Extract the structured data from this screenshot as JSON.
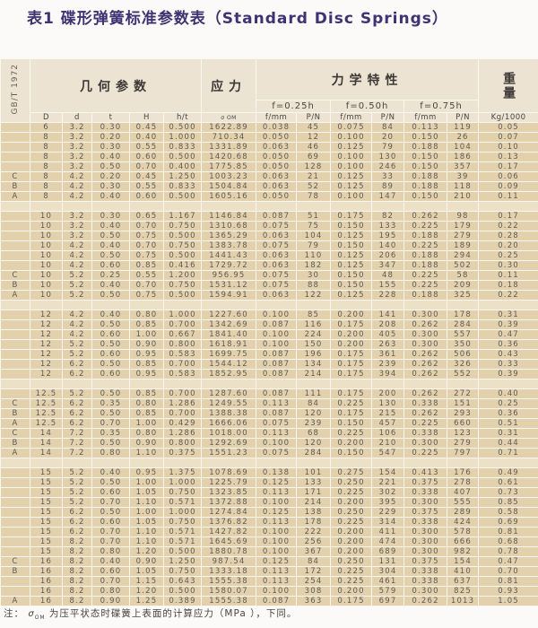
{
  "title": "表1  碟形弹簧标准参数表（Standard Disc Springs）",
  "header": {
    "standard": "GB/T 1972",
    "geometry": "几何参数",
    "stress": "应力",
    "mechanics": "力学特性",
    "weight": "重量",
    "deflections": [
      "f=0.25h",
      "f=0.50h",
      "f=0.75h"
    ],
    "columns": [
      "D",
      "d",
      "t",
      "H",
      "h/t",
      "σ OM",
      "f/mm",
      "P/N",
      "f/mm",
      "P/N",
      "f/mm",
      "P/N",
      "Kg/1000"
    ]
  },
  "groups": [
    [
      [
        "",
        "6",
        "3.2",
        "0.30",
        "0.45",
        "0.500",
        "1622.89",
        "0.038",
        "45",
        "0.075",
        "84",
        "0.113",
        "119",
        "0.05"
      ],
      [
        "",
        "8",
        "3.2",
        "0.20",
        "0.40",
        "1.000",
        "710.34",
        "0.050",
        "12",
        "0.100",
        "20",
        "0.150",
        "26",
        "0.07"
      ],
      [
        "",
        "8",
        "3.2",
        "0.30",
        "0.55",
        "0.833",
        "1331.89",
        "0.063",
        "46",
        "0.125",
        "79",
        "0.188",
        "104",
        "0.10"
      ],
      [
        "",
        "8",
        "3.2",
        "0.40",
        "0.60",
        "0.500",
        "1420.68",
        "0.050",
        "69",
        "0.100",
        "130",
        "0.150",
        "186",
        "0.13"
      ],
      [
        "",
        "8",
        "3.2",
        "0.50",
        "0.70",
        "0.400",
        "1775.85",
        "0.050",
        "128",
        "0.100",
        "246",
        "0.150",
        "357",
        "0.17"
      ],
      [
        "C",
        "8",
        "4.2",
        "0.20",
        "0.45",
        "1.250",
        "1003.23",
        "0.063",
        "21",
        "0.125",
        "33",
        "0.188",
        "39",
        "0.06"
      ],
      [
        "B",
        "8",
        "4.2",
        "0.30",
        "0.55",
        "0.833",
        "1504.84",
        "0.063",
        "52",
        "0.125",
        "89",
        "0.188",
        "118",
        "0.09"
      ],
      [
        "A",
        "8",
        "4.2",
        "0.40",
        "0.60",
        "0.500",
        "1605.16",
        "0.050",
        "78",
        "0.100",
        "147",
        "0.150",
        "210",
        "0.11"
      ]
    ],
    [
      [
        "",
        "10",
        "3.2",
        "0.30",
        "0.65",
        "1.167",
        "1146.84",
        "0.087",
        "51",
        "0.175",
        "82",
        "0.262",
        "98",
        "0.17"
      ],
      [
        "",
        "10",
        "3.2",
        "0.40",
        "0.70",
        "0.750",
        "1310.68",
        "0.075",
        "75",
        "0.150",
        "133",
        "0.225",
        "179",
        "0.22"
      ],
      [
        "",
        "10",
        "3.2",
        "0.50",
        "0.75",
        "0.500",
        "1365.29",
        "0.063",
        "104",
        "0.125",
        "195",
        "0.188",
        "279",
        "0.28"
      ],
      [
        "",
        "10",
        "4.2",
        "0.40",
        "0.70",
        "0.750",
        "1383.78",
        "0.075",
        "79",
        "0.150",
        "140",
        "0.225",
        "189",
        "0.20"
      ],
      [
        "",
        "10",
        "4.2",
        "0.50",
        "0.75",
        "0.500",
        "1441.43",
        "0.063",
        "110",
        "0.125",
        "206",
        "0.188",
        "294",
        "0.25"
      ],
      [
        "",
        "10",
        "4.2",
        "0.60",
        "0.85",
        "0.416",
        "1729.72",
        "0.063",
        "182",
        "0.125",
        "347",
        "0.188",
        "502",
        "0.30"
      ],
      [
        "C",
        "10",
        "5.2",
        "0.25",
        "0.55",
        "1.200",
        "956.95",
        "0.075",
        "30",
        "0.150",
        "48",
        "0.225",
        "58",
        "0.11"
      ],
      [
        "B",
        "10",
        "5.2",
        "0.40",
        "0.70",
        "0.750",
        "1531.12",
        "0.075",
        "88",
        "0.150",
        "155",
        "0.225",
        "209",
        "0.18"
      ],
      [
        "A",
        "10",
        "5.2",
        "0.50",
        "0.75",
        "0.500",
        "1594.91",
        "0.063",
        "122",
        "0.125",
        "228",
        "0.188",
        "325",
        "0.22"
      ]
    ],
    [
      [
        "",
        "12",
        "4.2",
        "0.40",
        "0.80",
        "1.000",
        "1227.60",
        "0.100",
        "85",
        "0.200",
        "141",
        "0.300",
        "178",
        "0.31"
      ],
      [
        "",
        "12",
        "4.2",
        "0.50",
        "0.85",
        "0.700",
        "1342.69",
        "0.087",
        "116",
        "0.175",
        "208",
        "0.262",
        "284",
        "0.39"
      ],
      [
        "",
        "12",
        "4.2",
        "0.60",
        "1.00",
        "0.667",
        "1841.40",
        "0.100",
        "224",
        "0.200",
        "405",
        "0.300",
        "557",
        "0.47"
      ],
      [
        "",
        "12",
        "5.2",
        "0.50",
        "0.90",
        "0.800",
        "1618.91",
        "0.100",
        "150",
        "0.200",
        "263",
        "0.300",
        "350",
        "0.36"
      ],
      [
        "",
        "12",
        "5.2",
        "0.60",
        "0.95",
        "0.583",
        "1699.75",
        "0.087",
        "196",
        "0.175",
        "361",
        "0.262",
        "506",
        "0.43"
      ],
      [
        "",
        "12",
        "6.2",
        "0.50",
        "0.85",
        "0.700",
        "1544.12",
        "0.087",
        "134",
        "0.175",
        "239",
        "0.262",
        "326",
        "0.33"
      ],
      [
        "",
        "12",
        "6.2",
        "0.60",
        "0.95",
        "0.583",
        "1852.95",
        "0.087",
        "214",
        "0.175",
        "394",
        "0.262",
        "552",
        "0.39"
      ]
    ],
    [
      [
        "",
        "12.5",
        "5.2",
        "0.50",
        "0.85",
        "0.700",
        "1287.60",
        "0.087",
        "111",
        "0.175",
        "200",
        "0.262",
        "272",
        "0.40"
      ],
      [
        "C",
        "12.5",
        "6.2",
        "0.35",
        "0.80",
        "1.286",
        "1249.55",
        "0.113",
        "84",
        "0.225",
        "130",
        "0.338",
        "151",
        "0.25"
      ],
      [
        "B",
        "12.5",
        "6.2",
        "0.50",
        "0.85",
        "0.700",
        "1388.38",
        "0.087",
        "120",
        "0.175",
        "215",
        "0.262",
        "293",
        "0.36"
      ],
      [
        "A",
        "12.5",
        "6.2",
        "0.70",
        "1.00",
        "0.429",
        "1666.06",
        "0.075",
        "239",
        "0.150",
        "457",
        "0.225",
        "660",
        "0.51"
      ],
      [
        "C",
        "14",
        "7.2",
        "0.35",
        "0.80",
        "1.286",
        "1018.00",
        "0.113",
        "68",
        "0.225",
        "106",
        "0.338",
        "123",
        "0.31"
      ],
      [
        "B",
        "14",
        "7.2",
        "0.50",
        "0.90",
        "0.800",
        "1292.69",
        "0.100",
        "120",
        "0.200",
        "210",
        "0.300",
        "279",
        "0.44"
      ],
      [
        "A",
        "14",
        "7.2",
        "0.80",
        "1.10",
        "0.375",
        "1551.23",
        "0.075",
        "284",
        "0.150",
        "547",
        "0.225",
        "797",
        "0.71"
      ]
    ],
    [
      [
        "",
        "15",
        "5.2",
        "0.40",
        "0.95",
        "1.375",
        "1078.69",
        "0.138",
        "101",
        "0.275",
        "154",
        "0.413",
        "176",
        "0.49"
      ],
      [
        "",
        "15",
        "5.2",
        "0.50",
        "1.00",
        "1.000",
        "1225.79",
        "0.125",
        "133",
        "0.250",
        "221",
        "0.375",
        "278",
        "0.61"
      ],
      [
        "",
        "15",
        "5.2",
        "0.60",
        "1.05",
        "0.750",
        "1323.85",
        "0.113",
        "171",
        "0.225",
        "302",
        "0.338",
        "407",
        "0.73"
      ],
      [
        "",
        "15",
        "5.2",
        "0.70",
        "1.10",
        "0.571",
        "1372.88",
        "0.100",
        "214",
        "0.200",
        "395",
        "0.300",
        "555",
        "0.85"
      ],
      [
        "",
        "15",
        "6.2",
        "0.50",
        "1.00",
        "1.000",
        "1274.84",
        "0.125",
        "138",
        "0.250",
        "229",
        "0.375",
        "289",
        "0.58"
      ],
      [
        "",
        "15",
        "6.2",
        "0.60",
        "1.05",
        "0.750",
        "1376.82",
        "0.113",
        "178",
        "0.225",
        "314",
        "0.338",
        "424",
        "0.69"
      ],
      [
        "",
        "15",
        "6.2",
        "0.70",
        "1.10",
        "0.571",
        "1427.82",
        "0.100",
        "222",
        "0.200",
        "411",
        "0.300",
        "578",
        "0.81"
      ],
      [
        "",
        "15",
        "8.2",
        "0.70",
        "1.10",
        "0.571",
        "1645.69",
        "0.100",
        "256",
        "0.200",
        "474",
        "0.300",
        "666",
        "0.68"
      ],
      [
        "",
        "15",
        "8.2",
        "0.80",
        "1.20",
        "0.500",
        "1880.78",
        "0.100",
        "367",
        "0.200",
        "689",
        "0.300",
        "982",
        "0.78"
      ],
      [
        "C",
        "16",
        "8.2",
        "0.40",
        "0.90",
        "1.250",
        "987.54",
        "0.125",
        "84",
        "0.250",
        "131",
        "0.375",
        "154",
        "0.47"
      ],
      [
        "B",
        "16",
        "8.2",
        "0.60",
        "1.05",
        "0.750",
        "1333.18",
        "0.113",
        "172",
        "0.225",
        "304",
        "0.338",
        "410",
        "0.70"
      ],
      [
        "",
        "16",
        "8.2",
        "0.70",
        "1.15",
        "0.643",
        "1555.38",
        "0.113",
        "254",
        "0.225",
        "461",
        "0.338",
        "637",
        "0.81"
      ],
      [
        "",
        "16",
        "8.2",
        "0.80",
        "1.20",
        "0.500",
        "1580.07",
        "0.100",
        "308",
        "0.200",
        "579",
        "0.300",
        "825",
        "0.93"
      ],
      [
        "A",
        "16",
        "8.2",
        "0.90",
        "1.25",
        "0.389",
        "1555.38",
        "0.087",
        "363",
        "0.175",
        "697",
        "0.262",
        "1013",
        "1.05"
      ]
    ]
  ],
  "note": {
    "prefix": "注：",
    "symbol": "σ",
    "subscript": "OM",
    "text": " 为压平状态时碟簧上表面的计算应力（MPa  ），下同。"
  },
  "colors": {
    "title": "#3f3473",
    "cell": "#e3d1ae",
    "header": "#ece3d2",
    "grid": "#fbf7ef"
  }
}
